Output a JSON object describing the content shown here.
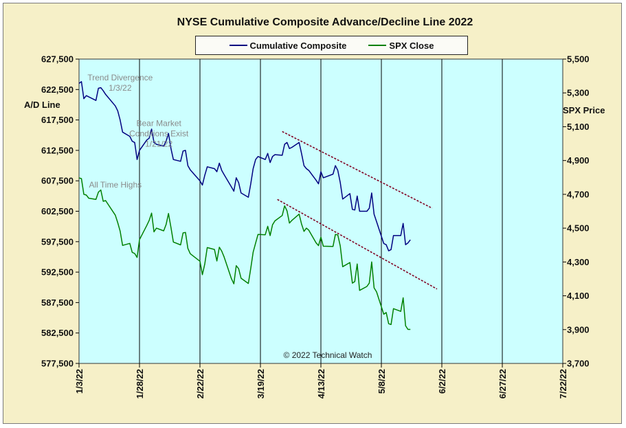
{
  "colors": {
    "frame_bg": "#f6f0c8",
    "plot_bg": "#ccffff",
    "ad_line": "#000080",
    "spx_line": "#008000",
    "trend_line": "#800020"
  },
  "chart_data": {
    "type": "line",
    "title": "NYSE Cumulative  Composite Advance/Decline  Line 2022",
    "left_axis_label": "A/D Line",
    "right_axis_label": "SPX Price",
    "left_ylim": [
      577500,
      627500
    ],
    "right_ylim": [
      3700,
      5500
    ],
    "left_ticks": [
      "577,500",
      "582,500",
      "587,500",
      "592,500",
      "597,500",
      "602,500",
      "607,500",
      "612,500",
      "617,500",
      "622,500",
      "627,500"
    ],
    "right_ticks": [
      "3,700",
      "3,900",
      "4,100",
      "4,300",
      "4,500",
      "4,700",
      "4,900",
      "5,100",
      "5,300",
      "5,500"
    ],
    "x_range": [
      "2022-01-03",
      "2022-07-22"
    ],
    "x_ticks": [
      "1/3/22",
      "1/28/22",
      "2/22/22",
      "3/19/22",
      "4/13/22",
      "5/8/22",
      "6/2/22",
      "6/27/22",
      "7/22/22"
    ],
    "grid": "vertical only",
    "legend_position": "top-center",
    "copyright": "© 2022 Technical  Watch",
    "series": [
      {
        "name": "Cumulative Composite",
        "axis": "left",
        "points": [
          [
            "2022-01-03",
            623500
          ],
          [
            "2022-01-04",
            623800
          ],
          [
            "2022-01-05",
            621000
          ],
          [
            "2022-01-06",
            621500
          ],
          [
            "2022-01-07",
            621300
          ],
          [
            "2022-01-10",
            620700
          ],
          [
            "2022-01-11",
            622700
          ],
          [
            "2022-01-12",
            622800
          ],
          [
            "2022-01-13",
            622300
          ],
          [
            "2022-01-14",
            621700
          ],
          [
            "2022-01-18",
            619800
          ],
          [
            "2022-01-19",
            619000
          ],
          [
            "2022-01-20",
            617500
          ],
          [
            "2022-01-21",
            615500
          ],
          [
            "2022-01-24",
            614800
          ],
          [
            "2022-01-25",
            614000
          ],
          [
            "2022-01-26",
            613800
          ],
          [
            "2022-01-27",
            611000
          ],
          [
            "2022-01-28",
            612500
          ],
          [
            "2022-01-31",
            614200
          ],
          [
            "2022-02-01",
            614500
          ],
          [
            "2022-02-02",
            616000
          ],
          [
            "2022-02-03",
            613800
          ],
          [
            "2022-02-04",
            613500
          ],
          [
            "2022-02-07",
            613200
          ],
          [
            "2022-02-08",
            614000
          ],
          [
            "2022-02-09",
            615300
          ],
          [
            "2022-02-10",
            612800
          ],
          [
            "2022-02-11",
            611000
          ],
          [
            "2022-02-14",
            610700
          ],
          [
            "2022-02-15",
            612400
          ],
          [
            "2022-02-16",
            612500
          ],
          [
            "2022-02-17",
            610000
          ],
          [
            "2022-02-18",
            609300
          ],
          [
            "2022-02-22",
            607500
          ],
          [
            "2022-02-23",
            606800
          ],
          [
            "2022-02-24",
            608400
          ],
          [
            "2022-02-25",
            609800
          ],
          [
            "2022-02-28",
            609500
          ],
          [
            "2022-03-01",
            609000
          ],
          [
            "2022-03-02",
            610400
          ],
          [
            "2022-03-03",
            609200
          ],
          [
            "2022-03-04",
            608500
          ],
          [
            "2022-03-07",
            606500
          ],
          [
            "2022-03-08",
            605800
          ],
          [
            "2022-03-09",
            608000
          ],
          [
            "2022-03-10",
            607200
          ],
          [
            "2022-03-11",
            605500
          ],
          [
            "2022-03-14",
            604800
          ],
          [
            "2022-03-15",
            607000
          ],
          [
            "2022-03-16",
            609500
          ],
          [
            "2022-03-17",
            611000
          ],
          [
            "2022-03-18",
            611500
          ],
          [
            "2022-03-21",
            611000
          ],
          [
            "2022-03-22",
            612000
          ],
          [
            "2022-03-23",
            610500
          ],
          [
            "2022-03-24",
            611500
          ],
          [
            "2022-03-25",
            611800
          ],
          [
            "2022-03-28",
            611700
          ],
          [
            "2022-03-29",
            613500
          ],
          [
            "2022-03-30",
            613800
          ],
          [
            "2022-03-31",
            612800
          ],
          [
            "2022-04-01",
            613000
          ],
          [
            "2022-04-04",
            613800
          ],
          [
            "2022-04-05",
            612000
          ],
          [
            "2022-04-06",
            610000
          ],
          [
            "2022-04-07",
            609500
          ],
          [
            "2022-04-08",
            609200
          ],
          [
            "2022-04-11",
            607600
          ],
          [
            "2022-04-12",
            607000
          ],
          [
            "2022-04-13",
            609000
          ],
          [
            "2022-04-14",
            608000
          ],
          [
            "2022-04-18",
            608600
          ],
          [
            "2022-04-19",
            610000
          ],
          [
            "2022-04-20",
            609200
          ],
          [
            "2022-04-21",
            607200
          ],
          [
            "2022-04-22",
            604500
          ],
          [
            "2022-04-25",
            605400
          ],
          [
            "2022-04-26",
            602800
          ],
          [
            "2022-04-27",
            602700
          ],
          [
            "2022-04-28",
            605000
          ],
          [
            "2022-04-29",
            602500
          ],
          [
            "2022-05-02",
            602500
          ],
          [
            "2022-05-03",
            603000
          ],
          [
            "2022-05-04",
            605500
          ],
          [
            "2022-05-05",
            602000
          ],
          [
            "2022-05-06",
            600800
          ],
          [
            "2022-05-09",
            597200
          ],
          [
            "2022-05-10",
            597000
          ],
          [
            "2022-05-11",
            596000
          ],
          [
            "2022-05-12",
            596200
          ],
          [
            "2022-05-13",
            598500
          ],
          [
            "2022-05-16",
            598500
          ],
          [
            "2022-05-17",
            600500
          ],
          [
            "2022-05-18",
            597000
          ],
          [
            "2022-05-19",
            597300
          ],
          [
            "2022-05-20",
            597800
          ]
        ]
      },
      {
        "name": "SPX Close",
        "axis": "right",
        "points": [
          [
            "2022-01-03",
            4797
          ],
          [
            "2022-01-04",
            4793
          ],
          [
            "2022-01-05",
            4700
          ],
          [
            "2022-01-06",
            4696
          ],
          [
            "2022-01-07",
            4677
          ],
          [
            "2022-01-10",
            4670
          ],
          [
            "2022-01-11",
            4713
          ],
          [
            "2022-01-12",
            4726
          ],
          [
            "2022-01-13",
            4659
          ],
          [
            "2022-01-14",
            4663
          ],
          [
            "2022-01-18",
            4577
          ],
          [
            "2022-01-19",
            4533
          ],
          [
            "2022-01-20",
            4483
          ],
          [
            "2022-01-21",
            4398
          ],
          [
            "2022-01-24",
            4410
          ],
          [
            "2022-01-25",
            4357
          ],
          [
            "2022-01-26",
            4350
          ],
          [
            "2022-01-27",
            4327
          ],
          [
            "2022-01-28",
            4432
          ],
          [
            "2022-01-31",
            4516
          ],
          [
            "2022-02-01",
            4546
          ],
          [
            "2022-02-02",
            4589
          ],
          [
            "2022-02-03",
            4478
          ],
          [
            "2022-02-04",
            4500
          ],
          [
            "2022-02-07",
            4484
          ],
          [
            "2022-02-08",
            4521
          ],
          [
            "2022-02-09",
            4587
          ],
          [
            "2022-02-10",
            4504
          ],
          [
            "2022-02-11",
            4418
          ],
          [
            "2022-02-14",
            4401
          ],
          [
            "2022-02-15",
            4472
          ],
          [
            "2022-02-16",
            4475
          ],
          [
            "2022-02-17",
            4380
          ],
          [
            "2022-02-18",
            4349
          ],
          [
            "2022-02-22",
            4304
          ],
          [
            "2022-02-23",
            4225
          ],
          [
            "2022-02-24",
            4288
          ],
          [
            "2022-02-25",
            4385
          ],
          [
            "2022-02-28",
            4374
          ],
          [
            "2022-03-01",
            4306
          ],
          [
            "2022-03-02",
            4387
          ],
          [
            "2022-03-03",
            4364
          ],
          [
            "2022-03-04",
            4329
          ],
          [
            "2022-03-07",
            4201
          ],
          [
            "2022-03-08",
            4171
          ],
          [
            "2022-03-09",
            4278
          ],
          [
            "2022-03-10",
            4260
          ],
          [
            "2022-03-11",
            4204
          ],
          [
            "2022-03-14",
            4173
          ],
          [
            "2022-03-15",
            4262
          ],
          [
            "2022-03-16",
            4358
          ],
          [
            "2022-03-17",
            4412
          ],
          [
            "2022-03-18",
            4463
          ],
          [
            "2022-03-21",
            4461
          ],
          [
            "2022-03-22",
            4511
          ],
          [
            "2022-03-23",
            4456
          ],
          [
            "2022-03-24",
            4520
          ],
          [
            "2022-03-25",
            4543
          ],
          [
            "2022-03-28",
            4575
          ],
          [
            "2022-03-29",
            4632
          ],
          [
            "2022-03-30",
            4602
          ],
          [
            "2022-03-31",
            4530
          ],
          [
            "2022-04-01",
            4546
          ],
          [
            "2022-04-04",
            4583
          ],
          [
            "2022-04-05",
            4525
          ],
          [
            "2022-04-06",
            4481
          ],
          [
            "2022-04-07",
            4500
          ],
          [
            "2022-04-08",
            4488
          ],
          [
            "2022-04-11",
            4413
          ],
          [
            "2022-04-12",
            4397
          ],
          [
            "2022-04-13",
            4447
          ],
          [
            "2022-04-14",
            4393
          ],
          [
            "2022-04-18",
            4392
          ],
          [
            "2022-04-19",
            4463
          ],
          [
            "2022-04-20",
            4460
          ],
          [
            "2022-04-21",
            4394
          ],
          [
            "2022-04-22",
            4272
          ],
          [
            "2022-04-25",
            4297
          ],
          [
            "2022-04-26",
            4175
          ],
          [
            "2022-04-27",
            4184
          ],
          [
            "2022-04-28",
            4288
          ],
          [
            "2022-04-29",
            4132
          ],
          [
            "2022-05-02",
            4155
          ],
          [
            "2022-05-03",
            4175
          ],
          [
            "2022-05-04",
            4300
          ],
          [
            "2022-05-05",
            4147
          ],
          [
            "2022-05-06",
            4123
          ],
          [
            "2022-05-09",
            3991
          ],
          [
            "2022-05-10",
            4001
          ],
          [
            "2022-05-11",
            3935
          ],
          [
            "2022-05-12",
            3930
          ],
          [
            "2022-05-13",
            4024
          ],
          [
            "2022-05-16",
            4008
          ],
          [
            "2022-05-17",
            4088
          ],
          [
            "2022-05-18",
            3923
          ],
          [
            "2022-05-19",
            3901
          ],
          [
            "2022-05-20",
            3901
          ]
        ]
      }
    ],
    "trend_lines": [
      {
        "axis": "left",
        "from": [
          "2022-03-28",
          615600
        ],
        "to": [
          "2022-05-29",
          603000
        ]
      },
      {
        "axis": "right",
        "from": [
          "2022-03-26",
          4670
        ],
        "to": [
          "2022-05-31",
          4140
        ]
      }
    ],
    "annotations": [
      {
        "lines": [
          "Trend  Divergence",
          "1/3/22"
        ],
        "date": "2022-01-20",
        "anchor_value": 624000
      },
      {
        "lines": [
          "Bear Market",
          "Conditions  Exist",
          "1/21/22"
        ],
        "date": "2022-02-05",
        "anchor_value": 616500
      },
      {
        "lines": [
          "All Time  Highs"
        ],
        "date": "2022-01-18",
        "anchor_value": 606400
      }
    ]
  }
}
